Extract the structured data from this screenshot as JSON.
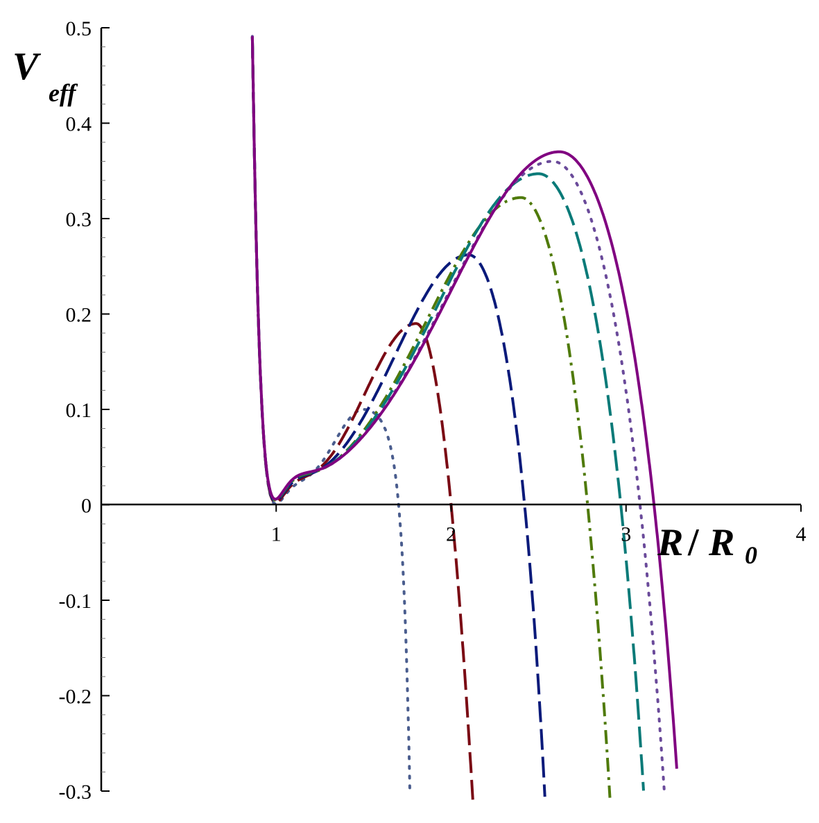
{
  "chart_data": {
    "type": "line",
    "title": "",
    "xlabel": {
      "main": "R",
      "slash": "/",
      "ref": "R",
      "sub": "0"
    },
    "ylabel": {
      "main": "V",
      "sub": "eff"
    },
    "xlim": [
      0,
      4
    ],
    "ylim": [
      -0.3,
      0.5
    ],
    "x_ticks": [
      {
        "value": 1,
        "label": "1"
      },
      {
        "value": 2,
        "label": "2"
      },
      {
        "value": 3,
        "label": "3"
      },
      {
        "value": 4,
        "label": "4"
      }
    ],
    "y_ticks": [
      {
        "value": 0.5,
        "label": "0.5"
      },
      {
        "value": 0.4,
        "label": "0.4"
      },
      {
        "value": 0.3,
        "label": "0.3"
      },
      {
        "value": 0.2,
        "label": "0.2"
      },
      {
        "value": 0.1,
        "label": "0.1"
      },
      {
        "value": 0,
        "label": "0"
      },
      {
        "value": -0.1,
        "label": "-0.1"
      },
      {
        "value": -0.2,
        "label": "-0.2"
      },
      {
        "value": -0.3,
        "label": "-0.3"
      }
    ],
    "grid": false,
    "legend": "none",
    "series": [
      {
        "style": "dotted",
        "color": "#4a5d8e",
        "peak_x": 1.5,
        "peak_y": 0.1,
        "zero_x": 1.7,
        "x_at_bottom": 1.75
      },
      {
        "style": "long-dash",
        "color": "#7a0a14",
        "peak_x": 1.8,
        "peak_y": 0.19,
        "zero_x": 2.0,
        "x_at_bottom": 2.13
      },
      {
        "style": "long-dash",
        "color": "#0a1a7a",
        "peak_x": 2.1,
        "peak_y": 0.262,
        "zero_x": 2.42,
        "x_at_bottom": 2.53
      },
      {
        "style": "dash-dot",
        "color": "#4f7a0a",
        "peak_x": 2.4,
        "peak_y": 0.322,
        "zero_x": 2.78,
        "x_at_bottom": 2.9
      },
      {
        "style": "long-dash",
        "color": "#0a7a78",
        "peak_x": 2.5,
        "peak_y": 0.347,
        "zero_x": 2.97,
        "x_at_bottom": 3.08
      },
      {
        "style": "dotted",
        "color": "#6a4a9a",
        "peak_x": 2.58,
        "peak_y": 0.36,
        "zero_x": 3.08,
        "x_at_bottom": 3.2
      },
      {
        "style": "solid",
        "color": "#800080",
        "peak_x": 2.62,
        "peak_y": 0.37,
        "zero_x": 3.16,
        "x_at_bottom": 3.27
      }
    ]
  }
}
